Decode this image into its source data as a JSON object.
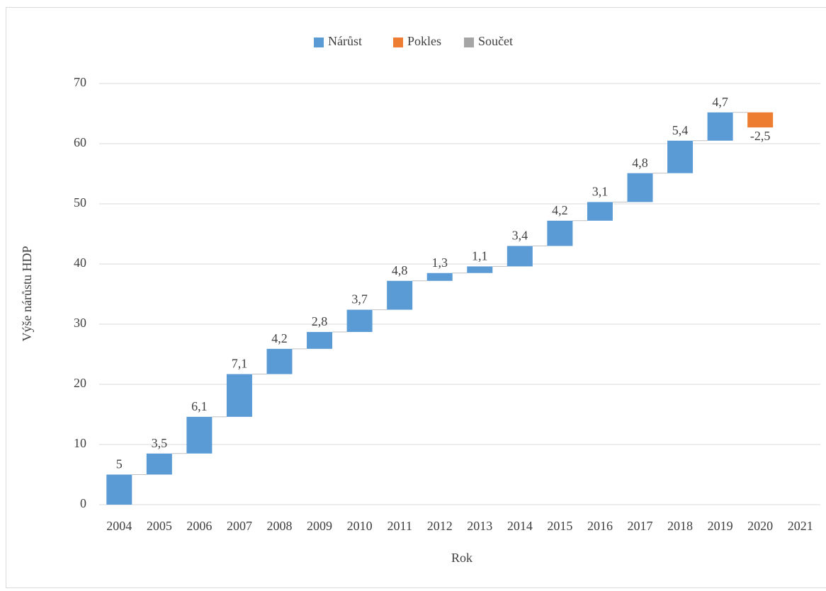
{
  "chart_data": {
    "type": "waterfall",
    "x_label": "Rok",
    "y_label": "Výše nárůstu HDP",
    "categories": [
      "2004",
      "2005",
      "2006",
      "2007",
      "2008",
      "2009",
      "2010",
      "2011",
      "2012",
      "2013",
      "2014",
      "2015",
      "2016",
      "2017",
      "2018",
      "2019",
      "2020",
      "2021"
    ],
    "values": [
      5,
      3.5,
      6.1,
      7.1,
      4.2,
      2.8,
      3.7,
      4.8,
      1.3,
      1.1,
      3.4,
      4.2,
      3.1,
      4.8,
      5.4,
      4.7,
      -2.5,
      null
    ],
    "value_labels": [
      "5",
      "3,5",
      "6,1",
      "7,1",
      "4,2",
      "2,8",
      "3,7",
      "4,8",
      "1,3",
      "1,1",
      "3,4",
      "4,2",
      "3,1",
      "4,8",
      "5,4",
      "4,7",
      "-2,5",
      null
    ],
    "legend": [
      {
        "name": "Nárůst",
        "color": "#5b9bd5"
      },
      {
        "name": "Pokles",
        "color": "#ed7d31"
      },
      {
        "name": "Součet",
        "color": "#a5a5a5"
      }
    ],
    "legend_position": "top",
    "ylim": [
      0,
      70
    ],
    "yticks": [
      0,
      10,
      20,
      30,
      40,
      50,
      60,
      70
    ],
    "grid": true
  }
}
